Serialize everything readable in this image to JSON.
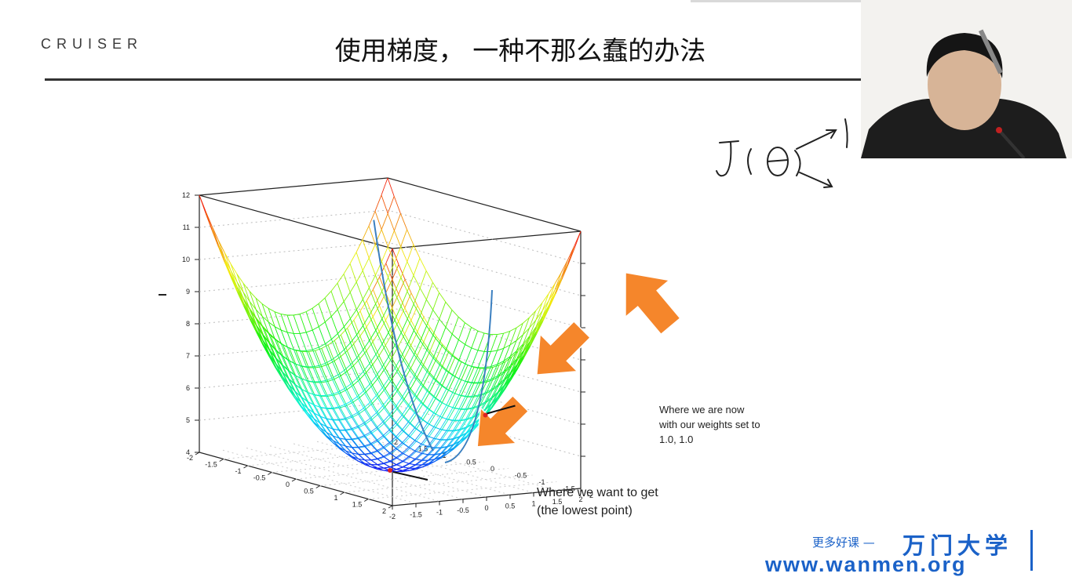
{
  "header": {
    "logo": "CRUISER",
    "title": "使用梯度， 一种不那么蠢的办法"
  },
  "chart_data": {
    "type": "surface",
    "title": "",
    "z_ticks": [
      "12",
      "11",
      "10",
      "9",
      "8",
      "7",
      "6",
      "5",
      "4"
    ],
    "y_ticks_left": [
      "-2",
      "-1.5",
      "-1",
      "-0.5",
      "0",
      "0.5",
      "1",
      "1.5",
      "2"
    ],
    "x_ticks_front": [
      "-2",
      "-1.5",
      "-1",
      "-0.5",
      "0",
      "0.5",
      "1",
      "1.5",
      "2"
    ],
    "zlim": [
      4,
      12
    ],
    "xlim": [
      -2,
      2
    ],
    "ylim": [
      -2,
      2
    ],
    "function": "z = 4 + x^2 + y^2",
    "points": [
      {
        "x": 1.0,
        "y": 1.0,
        "label": "Where we are now with our weights set to 1.0, 1.0"
      },
      {
        "x": 0.0,
        "y": 0.0,
        "label": "Where we want to get (the lowest point)"
      }
    ]
  },
  "annotations": {
    "now_line1": "Where we are now",
    "now_line2": "with our weights set to",
    "now_line3": "1.0, 1.0",
    "want_line1": "Where we want to get",
    "want_line2": "(the lowest point)"
  },
  "handwriting": "J(θ)",
  "footer": {
    "promo": "更多好课 —",
    "brand": "万门大学",
    "url": "www.wanmen.org"
  },
  "colors": {
    "arrow": "#f5862b",
    "brand_blue": "#1b62c8",
    "path_line": "#3b7fc0",
    "point": "#e0231f"
  }
}
